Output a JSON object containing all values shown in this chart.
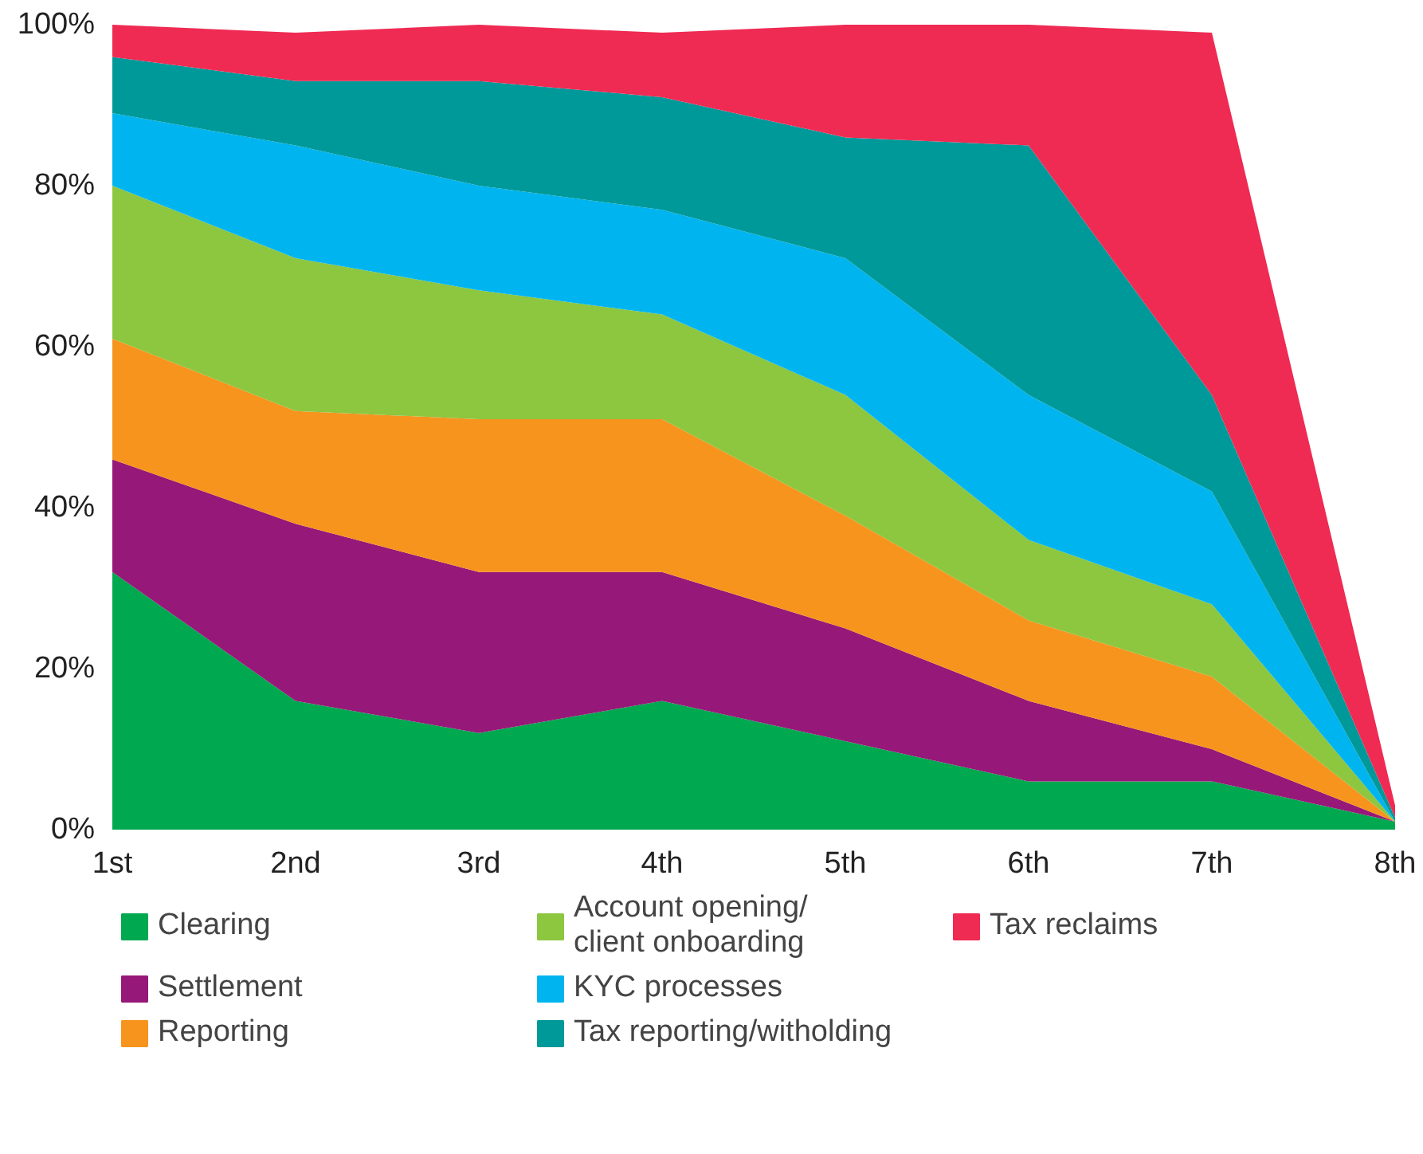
{
  "chart_data": {
    "type": "area",
    "stacked": true,
    "categories": [
      "1st",
      "2nd",
      "3rd",
      "4th",
      "5th",
      "6th",
      "7th",
      "8th"
    ],
    "series": [
      {
        "name": "Clearing",
        "color": "#00a84f",
        "values": [
          32,
          16,
          12,
          16,
          11,
          6,
          6,
          1
        ]
      },
      {
        "name": "Settlement",
        "color": "#961878",
        "values": [
          14,
          22,
          20,
          16,
          14,
          10,
          4,
          0
        ]
      },
      {
        "name": "Reporting",
        "color": "#f7941d",
        "values": [
          15,
          14,
          19,
          19,
          14,
          10,
          9,
          0
        ]
      },
      {
        "name": "Account opening/\nclient onboarding",
        "color": "#8dc63f",
        "values": [
          19,
          19,
          16,
          13,
          15,
          10,
          9,
          0
        ]
      },
      {
        "name": "KYC processes",
        "color": "#00b5ef",
        "values": [
          9,
          14,
          13,
          13,
          17,
          18,
          14,
          0
        ]
      },
      {
        "name": "Tax reporting/witholding",
        "color": "#00999a",
        "values": [
          7,
          8,
          13,
          14,
          15,
          31,
          12,
          0.5
        ]
      },
      {
        "name": "Tax reclaims",
        "color": "#ef2a53",
        "values": [
          4,
          6,
          7,
          8,
          14,
          15,
          45,
          1.5
        ]
      }
    ],
    "ylim": [
      0,
      100
    ],
    "yticks": [
      {
        "value": 0,
        "label": "0%"
      },
      {
        "value": 20,
        "label": "20%"
      },
      {
        "value": 40,
        "label": "40%"
      },
      {
        "value": 60,
        "label": "60%"
      },
      {
        "value": 80,
        "label": "80%"
      },
      {
        "value": 100,
        "label": "100%"
      }
    ],
    "grid": false,
    "legend": "bottom"
  }
}
